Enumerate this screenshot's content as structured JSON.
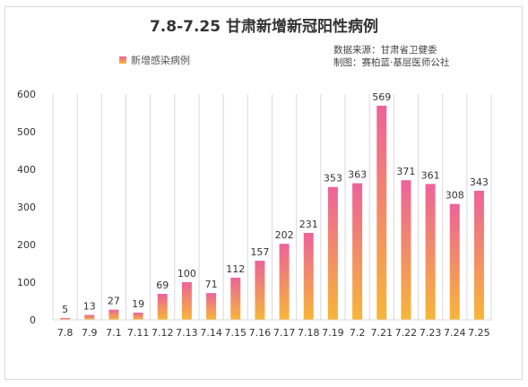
{
  "chart_data": {
    "type": "bar",
    "title": "7.8-7.25 甘肃新增新冠阳性病例",
    "source_lines": [
      "数据来源：甘肃省卫健委",
      "制图：赛柏蓝·基层医师公社"
    ],
    "series": [
      {
        "name": "新增感染病例",
        "values": [
          5,
          13,
          27,
          19,
          69,
          100,
          71,
          112,
          157,
          202,
          231,
          353,
          363,
          569,
          371,
          361,
          308,
          343
        ]
      }
    ],
    "categories": [
      "7.8",
      "7.9",
      "7.1",
      "7.11",
      "7.12",
      "7.13",
      "7.14",
      "7.15",
      "7.16",
      "7.17",
      "7.18",
      "7.19",
      "7.2",
      "7.21",
      "7.22",
      "7.23",
      "7.24",
      "7.25"
    ],
    "y_ticks": [
      "0",
      "100",
      "200",
      "300",
      "400",
      "500",
      "600"
    ],
    "ylim": [
      0,
      600
    ],
    "xlabel": "",
    "ylabel": "",
    "grid": "vertical",
    "legend_position": "top-left",
    "colors": {
      "bar_top": "#ec6399",
      "bar_bottom": "#f7b637",
      "grid": "#d9d9d9"
    }
  }
}
